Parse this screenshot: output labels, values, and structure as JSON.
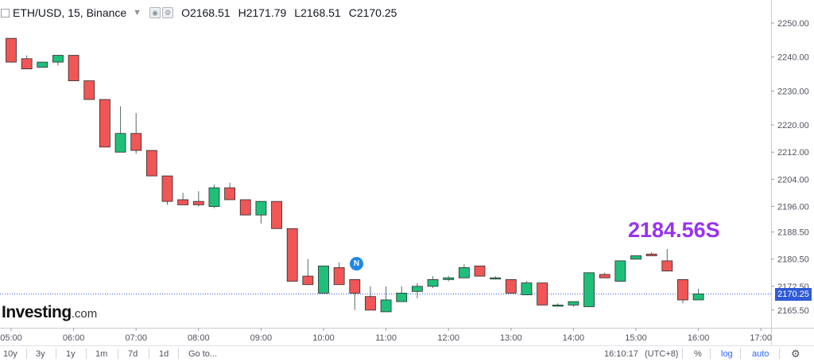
{
  "header": {
    "title": "ETH/USD, 15, Binance",
    "ohlc": [
      {
        "label": "O",
        "value": "2168.51"
      },
      {
        "label": "H",
        "value": "2171.79"
      },
      {
        "label": "L",
        "value": "2168.51"
      },
      {
        "label": "C",
        "value": "2170.25"
      }
    ]
  },
  "logo": {
    "brand": "Investing",
    "domain": ".com"
  },
  "annotation": {
    "text": "2184.56S",
    "color": "#9933ee"
  },
  "news_marker": {
    "label": "N"
  },
  "price_tag": {
    "text": "2170.25"
  },
  "colors": {
    "up": "#1fbf7a",
    "down": "#f05656",
    "wick": "#5a6b66",
    "price_line": "#2f5bd6"
  },
  "toolbar": {
    "ranges": [
      "10y",
      "3y",
      "1y",
      "1m",
      "7d",
      "1d"
    ],
    "goto": "Go to...",
    "time": "16:10:17",
    "timezone": "(UTC+8)",
    "percent": "%",
    "log": "log",
    "auto": "auto"
  },
  "chart_data": {
    "type": "candlestick",
    "title": "ETH/USD, 15, Binance",
    "y_ticks": [
      "2165.50",
      "2172.50",
      "2180.50",
      "2188.50",
      "2196.00",
      "2204.00",
      "2212.00",
      "2220.00",
      "2230.00",
      "2240.00",
      "2250.00"
    ],
    "x_ticks": [
      "05:00",
      "06:00",
      "07:00",
      "08:00",
      "09:00",
      "10:00",
      "11:00",
      "12:00",
      "13:00",
      "14:00",
      "15:00",
      "16:00",
      "17:00"
    ],
    "last_price": 2170.25,
    "candles": [
      {
        "t": "05:00",
        "o": 2245.5,
        "h": 2245.5,
        "l": 2238.5,
        "c": 2238.5
      },
      {
        "t": "05:15",
        "o": 2239.5,
        "h": 2240.5,
        "l": 2236.5,
        "c": 2236.5
      },
      {
        "t": "05:30",
        "o": 2237.0,
        "h": 2238.5,
        "l": 2237.0,
        "c": 2238.5
      },
      {
        "t": "05:45",
        "o": 2238.5,
        "h": 2240.5,
        "l": 2237.5,
        "c": 2240.5
      },
      {
        "t": "06:00",
        "o": 2240.5,
        "h": 2240.5,
        "l": 2233.0,
        "c": 2233.0
      },
      {
        "t": "06:15",
        "o": 2233.0,
        "h": 2233.0,
        "l": 2227.5,
        "c": 2227.5
      },
      {
        "t": "06:30",
        "o": 2227.5,
        "h": 2227.5,
        "l": 2213.5,
        "c": 2213.5
      },
      {
        "t": "06:45",
        "o": 2212.0,
        "h": 2225.5,
        "l": 2212.0,
        "c": 2217.5
      },
      {
        "t": "07:00",
        "o": 2217.5,
        "h": 2223.5,
        "l": 2211.5,
        "c": 2212.5
      },
      {
        "t": "07:15",
        "o": 2212.5,
        "h": 2212.5,
        "l": 2205.0,
        "c": 2205.0
      },
      {
        "t": "07:30",
        "o": 2205.0,
        "h": 2205.0,
        "l": 2196.5,
        "c": 2197.5
      },
      {
        "t": "07:45",
        "o": 2198.0,
        "h": 2200.0,
        "l": 2196.5,
        "c": 2196.5
      },
      {
        "t": "08:00",
        "o": 2197.5,
        "h": 2200.5,
        "l": 2196.0,
        "c": 2196.5
      },
      {
        "t": "08:15",
        "o": 2196.0,
        "h": 2202.5,
        "l": 2195.5,
        "c": 2201.5
      },
      {
        "t": "08:30",
        "o": 2201.5,
        "h": 2203.0,
        "l": 2198.0,
        "c": 2198.0
      },
      {
        "t": "08:45",
        "o": 2198.0,
        "h": 2198.0,
        "l": 2193.5,
        "c": 2193.5
      },
      {
        "t": "09:00",
        "o": 2193.5,
        "h": 2197.5,
        "l": 2191.0,
        "c": 2197.5
      },
      {
        "t": "09:15",
        "o": 2197.5,
        "h": 2197.5,
        "l": 2189.5,
        "c": 2189.5
      },
      {
        "t": "09:30",
        "o": 2189.5,
        "h": 2189.5,
        "l": 2174.0,
        "c": 2174.0
      },
      {
        "t": "09:45",
        "o": 2175.5,
        "h": 2180.5,
        "l": 2173.0,
        "c": 2173.0
      },
      {
        "t": "10:00",
        "o": 2170.5,
        "h": 2178.5,
        "l": 2170.5,
        "c": 2178.5
      },
      {
        "t": "10:15",
        "o": 2178.0,
        "h": 2179.5,
        "l": 2173.0,
        "c": 2173.0
      },
      {
        "t": "10:30",
        "o": 2174.5,
        "h": 2174.5,
        "l": 2165.5,
        "c": 2170.5
      },
      {
        "t": "10:45",
        "o": 2169.5,
        "h": 2172.5,
        "l": 2165.5,
        "c": 2165.5
      },
      {
        "t": "11:00",
        "o": 2165.0,
        "h": 2172.5,
        "l": 2165.0,
        "c": 2168.5
      },
      {
        "t": "11:15",
        "o": 2168.0,
        "h": 2172.5,
        "l": 2168.0,
        "c": 2170.5
      },
      {
        "t": "11:30",
        "o": 2171.0,
        "h": 2173.5,
        "l": 2169.0,
        "c": 2172.5
      },
      {
        "t": "11:45",
        "o": 2172.5,
        "h": 2175.5,
        "l": 2172.0,
        "c": 2174.5
      },
      {
        "t": "12:00",
        "o": 2174.5,
        "h": 2175.5,
        "l": 2174.0,
        "c": 2175.0
      },
      {
        "t": "12:15",
        "o": 2175.0,
        "h": 2179.0,
        "l": 2175.0,
        "c": 2178.0
      },
      {
        "t": "12:30",
        "o": 2178.5,
        "h": 2178.5,
        "l": 2175.5,
        "c": 2175.5
      },
      {
        "t": "12:45",
        "o": 2175.0,
        "h": 2175.5,
        "l": 2174.5,
        "c": 2175.0
      },
      {
        "t": "13:00",
        "o": 2174.5,
        "h": 2174.5,
        "l": 2170.5,
        "c": 2170.5
      },
      {
        "t": "13:15",
        "o": 2170.0,
        "h": 2174.0,
        "l": 2170.0,
        "c": 2173.5
      },
      {
        "t": "13:30",
        "o": 2173.5,
        "h": 2173.5,
        "l": 2167.0,
        "c": 2167.0
      },
      {
        "t": "13:45",
        "o": 2167.0,
        "h": 2167.5,
        "l": 2166.5,
        "c": 2167.0
      },
      {
        "t": "14:00",
        "o": 2167.0,
        "h": 2168.0,
        "l": 2166.5,
        "c": 2168.0
      },
      {
        "t": "14:15",
        "o": 2166.5,
        "h": 2176.5,
        "l": 2166.5,
        "c": 2176.5
      },
      {
        "t": "14:30",
        "o": 2176.0,
        "h": 2176.5,
        "l": 2175.0,
        "c": 2175.0
      },
      {
        "t": "14:45",
        "o": 2174.0,
        "h": 2180.0,
        "l": 2174.0,
        "c": 2180.0
      },
      {
        "t": "15:00",
        "o": 2180.5,
        "h": 2181.5,
        "l": 2180.5,
        "c": 2181.5
      },
      {
        "t": "15:15",
        "o": 2182.0,
        "h": 2182.5,
        "l": 2181.5,
        "c": 2181.5
      },
      {
        "t": "15:30",
        "o": 2180.0,
        "h": 2183.5,
        "l": 2177.0,
        "c": 2177.0
      },
      {
        "t": "15:45",
        "o": 2174.5,
        "h": 2174.5,
        "l": 2167.5,
        "c": 2168.5
      },
      {
        "t": "16:00",
        "o": 2168.51,
        "h": 2171.79,
        "l": 2168.51,
        "c": 2170.25
      }
    ]
  }
}
